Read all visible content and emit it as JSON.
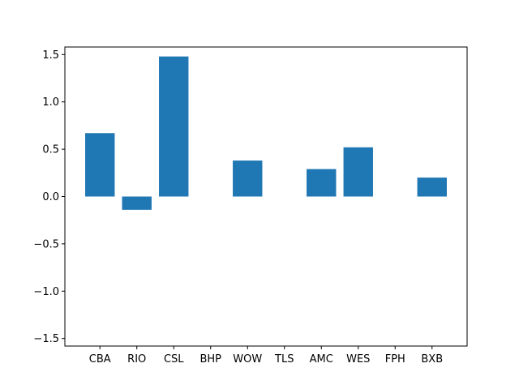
{
  "chart_data": {
    "type": "bar",
    "title": "",
    "xlabel": "",
    "ylabel": "",
    "categories": [
      "CBA",
      "RIO",
      "CSL",
      "BHP",
      "WOW",
      "TLS",
      "AMC",
      "WES",
      "FPH",
      "BXB"
    ],
    "values": [
      0.67,
      -0.14,
      1.48,
      0.0,
      0.38,
      0.0,
      0.29,
      0.52,
      0.0,
      0.2
    ],
    "ylim": [
      -1.58,
      1.58
    ],
    "yticks": [
      -1.5,
      -1.0,
      -0.5,
      0.0,
      0.5,
      1.0,
      1.5
    ],
    "ytick_labels": [
      "−1.5",
      "−1.0",
      "−0.5",
      "0.0",
      "0.5",
      "1.0",
      "1.5"
    ],
    "grid": false,
    "colors": {
      "bar": "#1f77b4",
      "axis": "#000000",
      "background": "#ffffff"
    }
  }
}
